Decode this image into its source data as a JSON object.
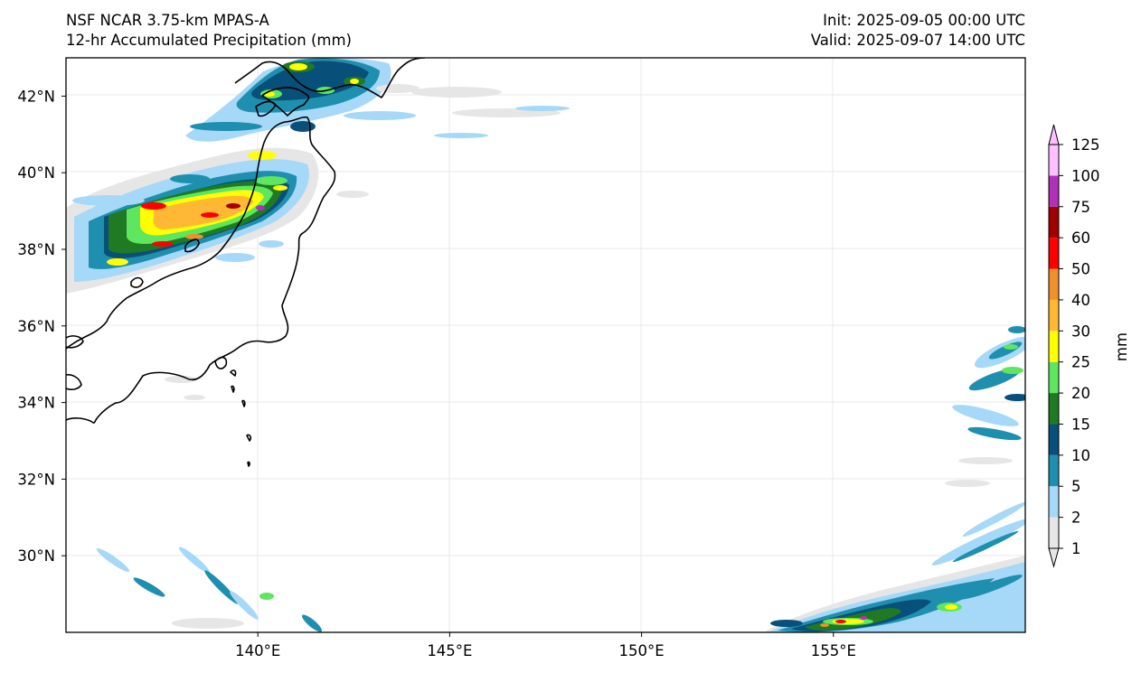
{
  "header": {
    "title_line1": "NSF NCAR 3.75-km MPAS-A",
    "title_line2": "12-hr Accumulated Precipitation (mm)",
    "init_label": "Init: 2025-09-05 00:00 UTC",
    "valid_label": "Valid: 2025-09-07 14:00 UTC"
  },
  "map": {
    "lon_range": [
      135,
      160
    ],
    "lat_range": [
      28,
      43
    ],
    "lon_ticks": [
      {
        "value": 140,
        "label": "140°E"
      },
      {
        "value": 145,
        "label": "145°E"
      },
      {
        "value": 150,
        "label": "150°E"
      },
      {
        "value": 155,
        "label": "155°E"
      }
    ],
    "lat_ticks": [
      {
        "value": 42,
        "label": "42°N"
      },
      {
        "value": 40,
        "label": "40°N"
      },
      {
        "value": 38,
        "label": "38°N"
      },
      {
        "value": 36,
        "label": "36°N"
      },
      {
        "value": 34,
        "label": "34°N"
      },
      {
        "value": 32,
        "label": "32°N"
      },
      {
        "value": 30,
        "label": "30°N"
      }
    ]
  },
  "colorbar": {
    "unit_label": "mm",
    "levels": [
      {
        "label": "1",
        "color": "#e6e6e6"
      },
      {
        "label": "2",
        "color": "#a6d8f8"
      },
      {
        "label": "5",
        "color": "#1f8fb0"
      },
      {
        "label": "10",
        "color": "#08507a"
      },
      {
        "label": "15",
        "color": "#1f7a23"
      },
      {
        "label": "20",
        "color": "#5ee65e"
      },
      {
        "label": "25",
        "color": "#ffff00"
      },
      {
        "label": "30",
        "color": "#ffb833"
      },
      {
        "label": "40",
        "color": "#f0902a"
      },
      {
        "label": "50",
        "color": "#ff0000"
      },
      {
        "label": "60",
        "color": "#a00000"
      },
      {
        "label": "75",
        "color": "#b030b8"
      },
      {
        "label": "100",
        "color": "#ffc0ff"
      },
      {
        "label": "125",
        "color": ""
      }
    ]
  }
}
